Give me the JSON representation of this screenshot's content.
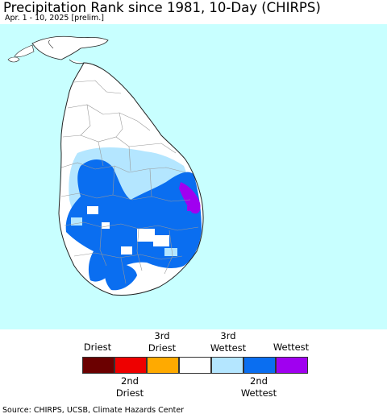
{
  "header": {
    "title": "Precipitation Rank since 1981, 10-Day (CHIRPS)",
    "subtitle": "Apr. 1 - 10, 2025 [prelim.]"
  },
  "colors": {
    "ocean": "#c8ffff",
    "land": "#ffffff",
    "border": "#999999",
    "coast": "#222222"
  },
  "legend": {
    "items": [
      {
        "top_label": "Driest",
        "bottom_label": "",
        "color": "#6b0000"
      },
      {
        "top_label": "",
        "bottom_label": "2nd\nDriest",
        "color": "#ee0000"
      },
      {
        "top_label": "3rd\nDriest",
        "bottom_label": "",
        "color": "#ffaa00"
      },
      {
        "top_label": "",
        "bottom_label": "",
        "color": "#ffffff"
      },
      {
        "top_label": "3rd\nWettest",
        "bottom_label": "",
        "color": "#b4e6ff"
      },
      {
        "top_label": "",
        "bottom_label": "2nd\nWettest",
        "color": "#0a6ef0"
      },
      {
        "top_label": "Wettest",
        "bottom_label": "",
        "color": "#a000f0"
      }
    ]
  },
  "footer": {
    "source": "Source: CHIRPS, UCSB, Climate Hazards Center"
  }
}
